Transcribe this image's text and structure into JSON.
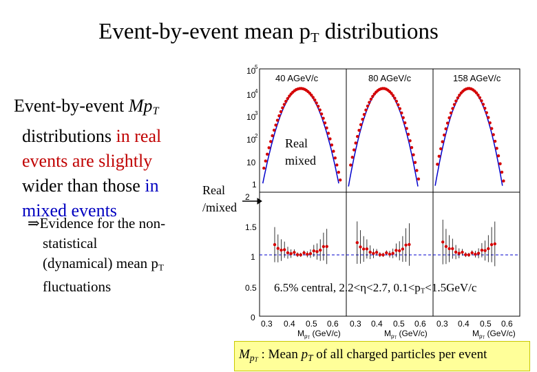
{
  "slide": {
    "title_main": "Event-by-event mean p",
    "title_sub": "T",
    "title_end": " distributions",
    "bullet": {
      "l1a": "Event-by-event ",
      "l1b": "Mp",
      "l1c": "T",
      "l2a": "distributions ",
      "l2b": "in real",
      "l3": "events are slightly",
      "l4a": "wider than those ",
      "l4b": "in",
      "l5": "mixed events"
    },
    "sub": {
      "l1": "⇒Evidence for the non-",
      "l2": "statistical",
      "l3a": "(dynamical) mean p",
      "l3b": "T",
      "l4": "fluctuations"
    },
    "label_real": "Real",
    "label_mixed": "mixed",
    "label_ratio_1": "Real",
    "label_ratio_2": "/mixed",
    "note_a": "6.5% central, 2.2<η<2.7, 0.1<p",
    "note_b": "T",
    "note_c": "<1.5GeV/c",
    "definition": {
      "sym_a": "M",
      "sym_b": "p",
      "sym_c": "T",
      "colon": " : Mean ",
      "pt_a": "p",
      "pt_b": "T",
      "rest": " of all charged particles per event"
    }
  },
  "chart_data": {
    "type": "line",
    "panels": [
      {
        "label": "40 AGeV/c"
      },
      {
        "label": "80 AGeV/c"
      },
      {
        "label": "158 AGeV/c"
      }
    ],
    "top_y_ticks": [
      "10",
      "10",
      "10",
      "10",
      "10",
      "1"
    ],
    "top_y_exponents": [
      "5",
      "4",
      "3",
      "2",
      "",
      ""
    ],
    "top_y_extra_tick": "2",
    "ratio_y_ticks": [
      "1.5",
      "1",
      "0.5",
      "0"
    ],
    "x_ticks": [
      "0.3",
      "0.4",
      "0.5",
      "0.6"
    ],
    "xlabel_a": "M",
    "xlabel_b": "p",
    "xlabel_c": "T",
    "xlabel_unit": " (GeV/c)",
    "yscale_top": "log",
    "ylim_ratio": [
      0,
      2
    ],
    "xlim": [
      0.25,
      0.65
    ],
    "colors": {
      "real": "#d40000",
      "mixed": "#0000cc",
      "dashed": "#0000cc"
    }
  }
}
